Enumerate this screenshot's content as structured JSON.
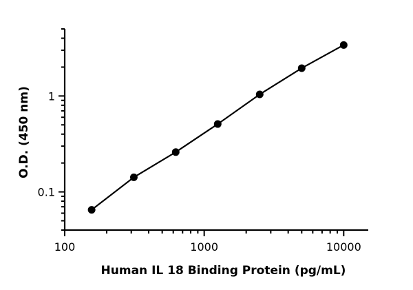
{
  "chart_data": {
    "type": "scatter",
    "xlabel": "Human IL 18 Binding Protein (pg/mL)",
    "ylabel": "O.D. (450 nm)",
    "x_scale": "log",
    "y_scale": "log",
    "xlim": [
      100,
      15000
    ],
    "ylim": [
      0.04,
      5
    ],
    "x_ticks": [
      {
        "value": 100,
        "label": "100"
      },
      {
        "value": 1000,
        "label": "1000"
      },
      {
        "value": 10000,
        "label": "10000"
      }
    ],
    "y_ticks": [
      {
        "value": 0.1,
        "label": "0.1"
      },
      {
        "value": 1,
        "label": "1"
      }
    ],
    "grid": false,
    "series": [
      {
        "x": [
          156,
          313,
          625,
          1250,
          2500,
          5000,
          10000
        ],
        "y": [
          0.065,
          0.142,
          0.26,
          0.51,
          1.04,
          1.95,
          3.4
        ],
        "fit_line": true
      }
    ]
  }
}
